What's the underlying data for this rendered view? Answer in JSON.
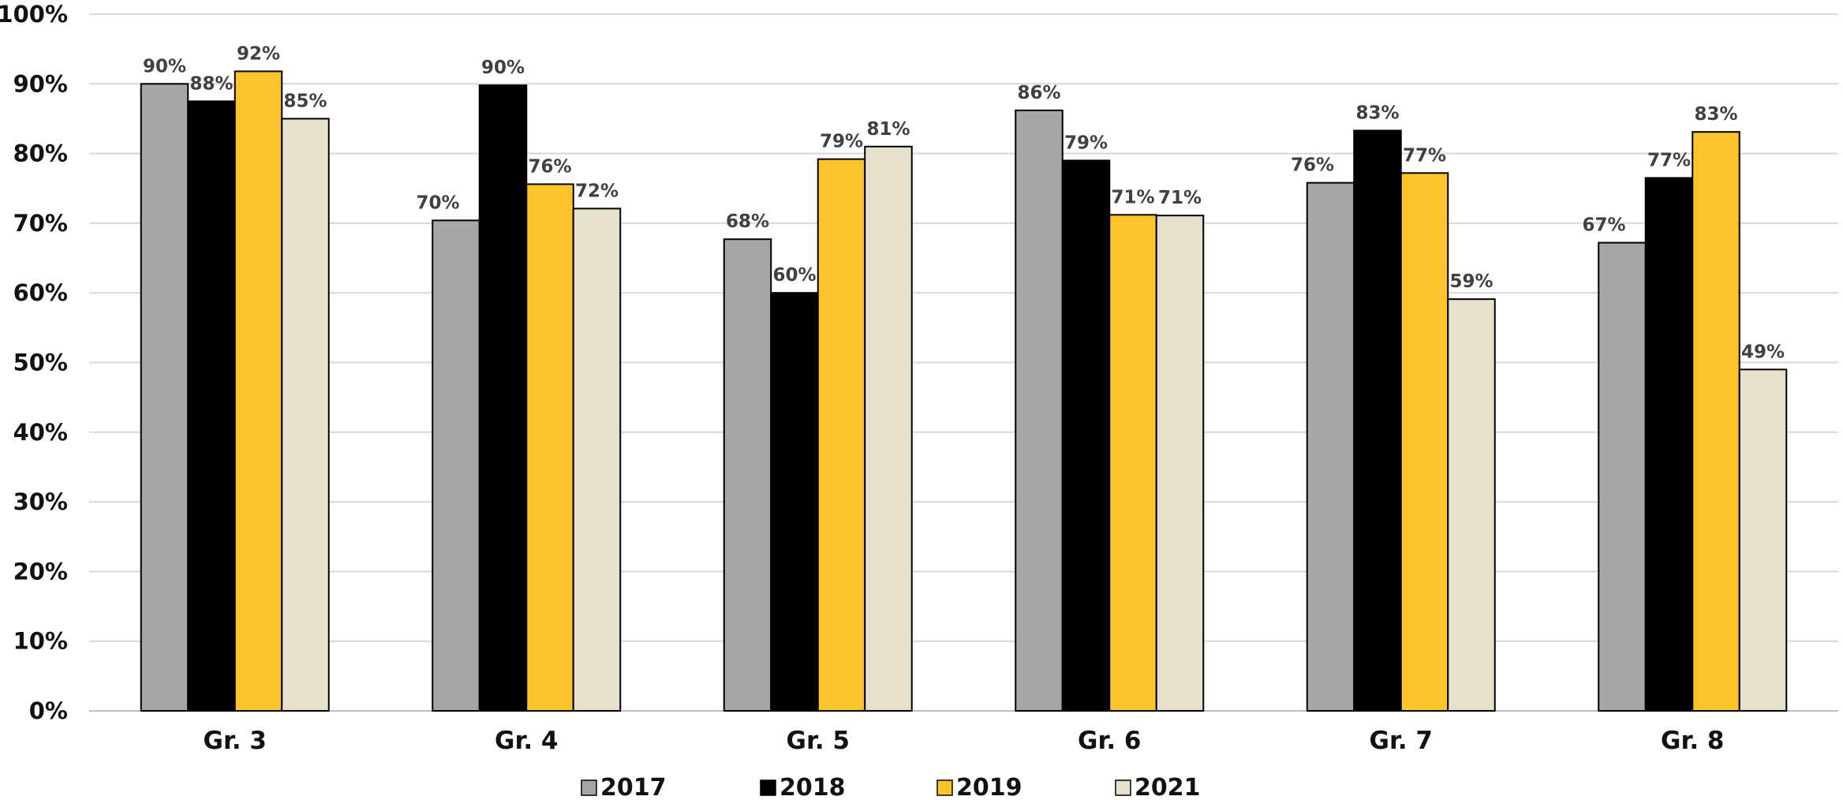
{
  "chart_data": {
    "type": "bar",
    "title": "",
    "xlabel": "",
    "ylabel": "",
    "ylim": [
      0,
      100
    ],
    "y_ticks": [
      "0%",
      "10%",
      "20%",
      "30%",
      "40%",
      "50%",
      "60%",
      "70%",
      "80%",
      "90%",
      "100%"
    ],
    "grid": true,
    "legend_position": "bottom",
    "categories": [
      "Gr. 3",
      "Gr. 4",
      "Gr. 5",
      "Gr. 6",
      "Gr. 7",
      "Gr. 8"
    ],
    "series": [
      {
        "name": "2017",
        "color": "#a6a6a6",
        "values": [
          90,
          70.4,
          67.7,
          86.2,
          75.8,
          67.2
        ],
        "labels": [
          "90%",
          "70%",
          "68%",
          "86%",
          "76%",
          "67%"
        ]
      },
      {
        "name": "2018",
        "color": "#000000",
        "values": [
          87.5,
          89.8,
          60,
          79,
          83.3,
          76.5
        ],
        "labels": [
          "88%",
          "90%",
          "60%",
          "79%",
          "83%",
          "77%"
        ]
      },
      {
        "name": "2019",
        "color": "#fcc32a",
        "values": [
          91.8,
          75.6,
          79.2,
          71.2,
          77.2,
          83.1
        ],
        "labels": [
          "92%",
          "76%",
          "79%",
          "71%",
          "77%",
          "83%"
        ]
      },
      {
        "name": "2021",
        "color": "#e6e1cd",
        "values": [
          85,
          72.1,
          81,
          71.1,
          59.1,
          49
        ],
        "labels": [
          "85%",
          "72%",
          "81%",
          "71%",
          "59%",
          "49%"
        ]
      }
    ]
  }
}
